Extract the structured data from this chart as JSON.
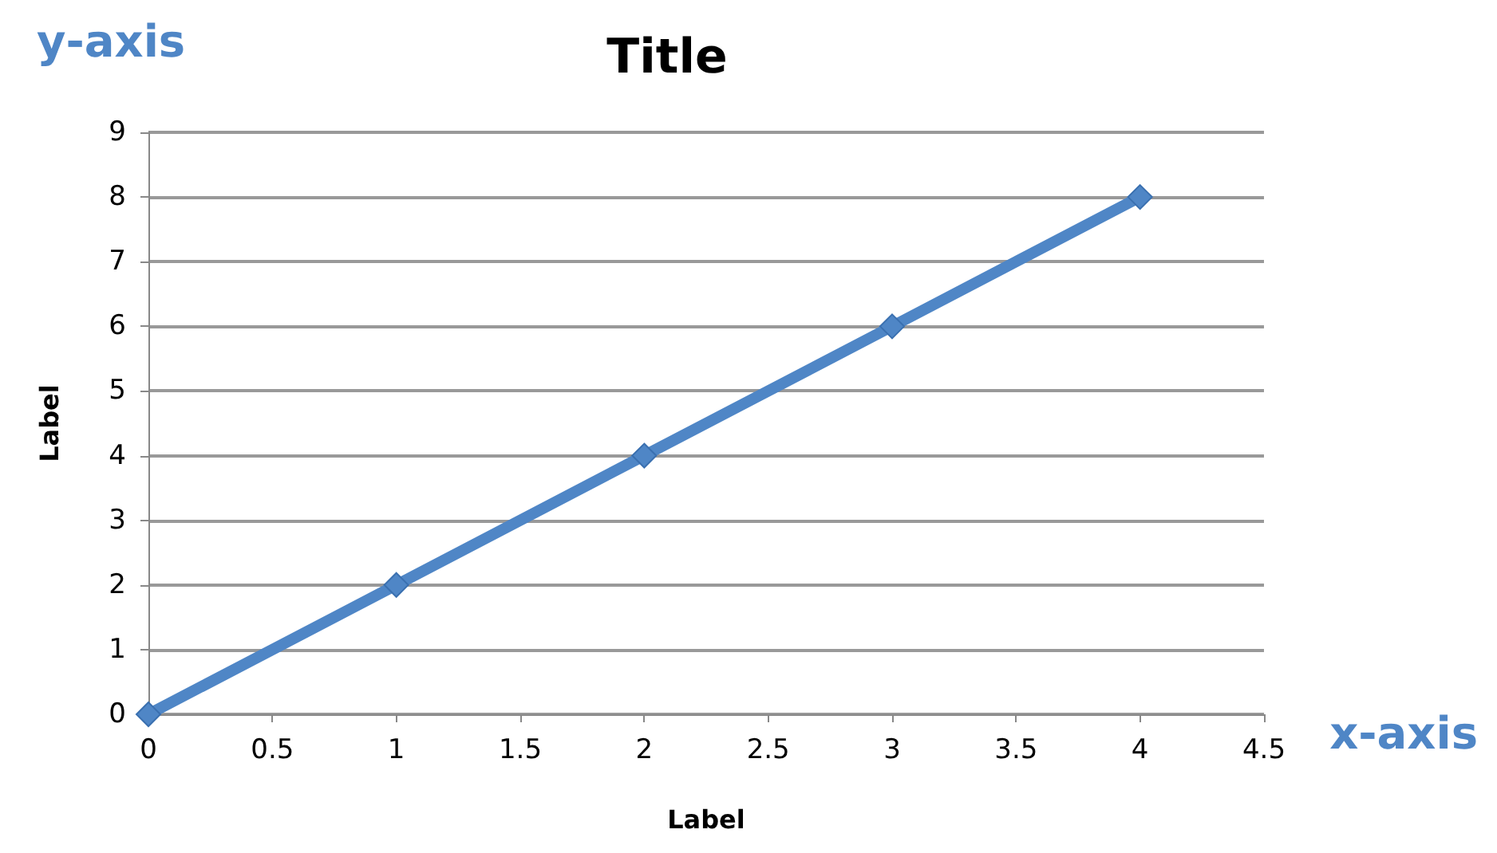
{
  "chart_data": {
    "type": "line",
    "title": "Title",
    "xlabel": "Label",
    "ylabel": "Label",
    "annotations": [
      "y-axis",
      "x-axis"
    ],
    "x": [
      0,
      1,
      2,
      3,
      4
    ],
    "series": [
      {
        "color": "#4f86c6",
        "values": [
          0,
          2,
          4,
          6,
          8
        ]
      }
    ],
    "xlim": [
      0,
      4.5
    ],
    "xticks": [
      0,
      0.5,
      1,
      1.5,
      2,
      2.5,
      3,
      3.5,
      4,
      4.5
    ],
    "ylim": [
      0,
      9
    ],
    "yticks": [
      0,
      1,
      2,
      3,
      4,
      5,
      6,
      7,
      8,
      9
    ],
    "grid": "y",
    "marker": "diamond",
    "line_style": "solid"
  }
}
